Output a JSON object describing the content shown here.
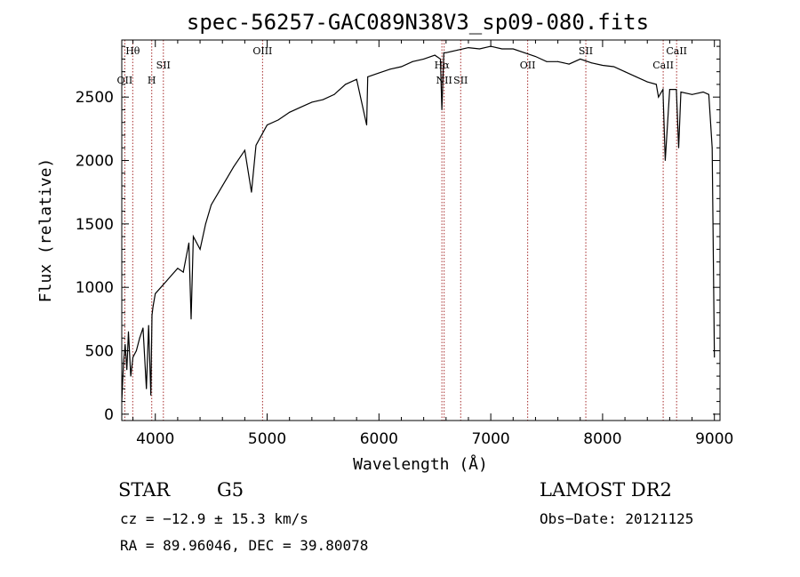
{
  "title": "spec-56257-GAC089N38V3_sp09-080.fits",
  "chart_data": {
    "type": "line",
    "xlabel": "Wavelength (Å)",
    "ylabel": "Flux (relative)",
    "xlim": [
      3700,
      9050
    ],
    "ylim": [
      -50,
      2950
    ],
    "x_ticks": [
      4000,
      5000,
      6000,
      7000,
      8000,
      9000
    ],
    "y_ticks": [
      0,
      500,
      1000,
      1500,
      2000,
      2500
    ],
    "grid": false,
    "legend": "none",
    "line_color": "#000000",
    "marker_color": "#a52a2a",
    "series": [
      {
        "x": [
          3700,
          3715,
          3730,
          3745,
          3760,
          3780,
          3800,
          3830,
          3860,
          3890,
          3920,
          3940,
          3960,
          3970,
          3980,
          4000,
          4050,
          4100,
          4150,
          4200,
          4250,
          4300,
          4320,
          4340,
          4400,
          4450,
          4500,
          4600,
          4700,
          4800,
          4860,
          4900,
          5000,
          5100,
          5200,
          5300,
          5400,
          5500,
          5600,
          5700,
          5800,
          5890,
          5900,
          6000,
          6100,
          6200,
          6300,
          6400,
          6500,
          6550,
          6563,
          6580,
          6600,
          6700,
          6800,
          6900,
          7000,
          7100,
          7200,
          7300,
          7400,
          7500,
          7600,
          7700,
          7800,
          7900,
          8000,
          8100,
          8200,
          8300,
          8400,
          8480,
          8500,
          8540,
          8560,
          8600,
          8660,
          8680,
          8700,
          8800,
          8900,
          8950,
          8980,
          9000
        ],
        "y": [
          100,
          400,
          550,
          350,
          650,
          300,
          450,
          500,
          600,
          680,
          200,
          700,
          150,
          780,
          850,
          950,
          1000,
          1050,
          1100,
          1150,
          1120,
          1350,
          750,
          1400,
          1300,
          1500,
          1650,
          1800,
          1950,
          2080,
          1750,
          2120,
          2280,
          2320,
          2380,
          2420,
          2460,
          2480,
          2520,
          2600,
          2640,
          2280,
          2660,
          2690,
          2720,
          2740,
          2780,
          2800,
          2830,
          2800,
          2400,
          2850,
          2850,
          2870,
          2890,
          2880,
          2900,
          2880,
          2880,
          2850,
          2820,
          2780,
          2780,
          2760,
          2800,
          2770,
          2750,
          2740,
          2700,
          2660,
          2620,
          2600,
          2500,
          2560,
          2000,
          2560,
          2560,
          2100,
          2540,
          2520,
          2540,
          2520,
          2100,
          450
        ]
      }
    ],
    "line_markers": [
      {
        "label": "Hθ",
        "x": 3798,
        "row": 1
      },
      {
        "label": "OII",
        "x": 3727,
        "row": 3
      },
      {
        "label": "H",
        "x": 3968,
        "row": 3
      },
      {
        "label": "SII",
        "x": 4072,
        "row": 2
      },
      {
        "label": "OIII",
        "x": 4959,
        "row": 1
      },
      {
        "label": "Hα",
        "x": 6563,
        "row": 2
      },
      {
        "label": "NII",
        "x": 6583,
        "row": 3
      },
      {
        "label": "SII",
        "x": 6731,
        "row": 3
      },
      {
        "label": "OII",
        "x": 7330,
        "row": 2
      },
      {
        "label": "SII",
        "x": 7850,
        "row": 1
      },
      {
        "label": "CaII",
        "x": 8542,
        "row": 2
      },
      {
        "label": "CaII",
        "x": 8662,
        "row": 1
      }
    ]
  },
  "info": {
    "object_class": "STAR",
    "subclass": "G5",
    "survey": "LAMOST DR2",
    "redshift": "cz = −12.9 ± 15.3 km/s",
    "obs_date": "Obs−Date: 20121125",
    "coords": "RA =  89.96046, DEC =  39.80078"
  }
}
